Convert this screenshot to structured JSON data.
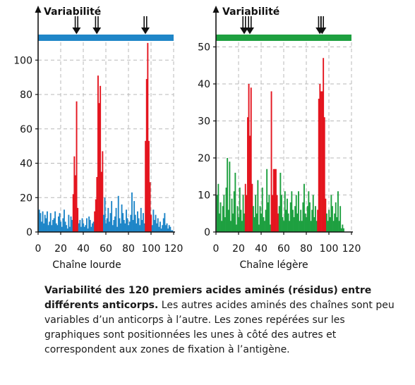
{
  "chart_data": [
    {
      "type": "bar",
      "title": "Variabilité",
      "xlabel": "Chaîne lourde",
      "ylabel": "",
      "xlim": [
        0,
        120
      ],
      "ylim": [
        0,
        112
      ],
      "xticks": [
        "0",
        "20",
        "40",
        "60",
        "80",
        "100",
        "120"
      ],
      "yticks": [
        "0",
        "20",
        "40",
        "60",
        "80",
        "100"
      ],
      "xtick_values": [
        0,
        20,
        40,
        60,
        80,
        100,
        120
      ],
      "ytick_values": [
        0,
        20,
        40,
        60,
        80,
        100
      ],
      "grid": true,
      "band_color": "#1f86c8",
      "base_color": "#1f86c8",
      "highlight_color": "#e4151f",
      "arrow_positions": [
        34,
        52,
        95
      ],
      "highlight_ranges": [
        [
          31,
          35
        ],
        [
          50,
          57
        ],
        [
          95,
          100
        ]
      ],
      "x": [
        1,
        2,
        3,
        4,
        5,
        6,
        7,
        8,
        9,
        10,
        11,
        12,
        13,
        14,
        15,
        16,
        17,
        18,
        19,
        20,
        21,
        22,
        23,
        24,
        25,
        26,
        27,
        28,
        29,
        30,
        31,
        32,
        33,
        34,
        35,
        36,
        37,
        38,
        39,
        40,
        41,
        42,
        43,
        44,
        45,
        46,
        47,
        48,
        49,
        50,
        51,
        52,
        53,
        54,
        55,
        56,
        57,
        58,
        59,
        60,
        61,
        62,
        63,
        64,
        65,
        66,
        67,
        68,
        69,
        70,
        71,
        72,
        73,
        74,
        75,
        76,
        77,
        78,
        79,
        80,
        81,
        82,
        83,
        84,
        85,
        86,
        87,
        88,
        89,
        90,
        91,
        92,
        93,
        94,
        95,
        96,
        97,
        98,
        99,
        100,
        101,
        102,
        103,
        104,
        105,
        106,
        107,
        108,
        109,
        110,
        111,
        112,
        113,
        114,
        115,
        116,
        117,
        118,
        119
      ],
      "values": [
        13,
        11,
        6,
        12,
        5,
        10,
        8,
        12,
        4,
        6,
        11,
        4,
        7,
        8,
        12,
        5,
        4,
        9,
        11,
        6,
        3,
        8,
        13,
        6,
        4,
        2,
        10,
        3,
        9,
        7,
        22,
        44,
        33,
        76,
        14,
        5,
        7,
        3,
        8,
        5,
        3,
        4,
        8,
        2,
        9,
        7,
        3,
        5,
        6,
        12,
        19,
        32,
        91,
        75,
        85,
        35,
        47,
        10,
        20,
        5,
        8,
        14,
        6,
        11,
        18,
        4,
        7,
        9,
        14,
        3,
        21,
        8,
        5,
        16,
        11,
        7,
        5,
        13,
        8,
        4,
        6,
        10,
        23,
        7,
        18,
        10,
        5,
        12,
        8,
        4,
        14,
        7,
        11,
        5,
        53,
        89,
        110,
        53,
        29,
        10,
        4,
        13,
        7,
        10,
        5,
        8,
        3,
        6,
        2,
        4,
        8,
        11,
        4,
        5,
        2,
        4,
        3,
        1,
        1
      ]
    },
    {
      "type": "bar",
      "title": "Variabilité",
      "xlabel": "Chaîne légère",
      "ylabel": "",
      "xlim": [
        0,
        120
      ],
      "ylim": [
        0,
        52
      ],
      "xticks": [
        "0",
        "20",
        "40",
        "60",
        "80",
        "100",
        "120"
      ],
      "yticks": [
        "0",
        "10",
        "20",
        "30",
        "40",
        "50"
      ],
      "xtick_values": [
        0,
        20,
        40,
        60,
        80,
        100,
        120
      ],
      "ytick_values": [
        0,
        10,
        20,
        30,
        40,
        50
      ],
      "grid": true,
      "band_color": "#1ea040",
      "base_color": "#1ea040",
      "highlight_color": "#e4151f",
      "arrow_positions": [
        25,
        30,
        92,
        94
      ],
      "highlight_ranges": [
        [
          26,
          32
        ],
        [
          49,
          55
        ],
        [
          90,
          97
        ]
      ],
      "x": [
        1,
        2,
        3,
        4,
        5,
        6,
        7,
        8,
        9,
        10,
        11,
        12,
        13,
        14,
        15,
        16,
        17,
        18,
        19,
        20,
        21,
        22,
        23,
        24,
        25,
        26,
        27,
        28,
        29,
        30,
        31,
        32,
        33,
        34,
        35,
        36,
        37,
        38,
        39,
        40,
        41,
        42,
        43,
        44,
        45,
        46,
        47,
        48,
        49,
        50,
        51,
        52,
        53,
        54,
        55,
        56,
        57,
        58,
        59,
        60,
        61,
        62,
        63,
        64,
        65,
        66,
        67,
        68,
        69,
        70,
        71,
        72,
        73,
        74,
        75,
        76,
        77,
        78,
        79,
        80,
        81,
        82,
        83,
        84,
        85,
        86,
        87,
        88,
        89,
        90,
        91,
        92,
        93,
        94,
        95,
        96,
        97,
        98,
        99,
        100,
        101,
        102,
        103,
        104,
        105,
        106,
        107,
        108,
        109,
        110,
        111,
        112,
        113,
        114,
        115,
        116,
        117,
        118,
        119
      ],
      "values": [
        10,
        13,
        5,
        8,
        3,
        7,
        10,
        4,
        12,
        20,
        6,
        19,
        3,
        9,
        5,
        11,
        16,
        2,
        7,
        4,
        12,
        6,
        3,
        10,
        5,
        13,
        10,
        31,
        40,
        26,
        39,
        13,
        7,
        4,
        10,
        5,
        14,
        2,
        7,
        5,
        12,
        4,
        3,
        6,
        17,
        8,
        10,
        2,
        38,
        10,
        17,
        17,
        17,
        10,
        5,
        7,
        16,
        10,
        4,
        3,
        11,
        6,
        9,
        5,
        3,
        8,
        11,
        6,
        4,
        7,
        10,
        5,
        11,
        3,
        6,
        3,
        8,
        13,
        5,
        4,
        7,
        11,
        8,
        3,
        6,
        10,
        4,
        7,
        3,
        6,
        36,
        40,
        38,
        38,
        47,
        31,
        9,
        5,
        3,
        6,
        4,
        10,
        7,
        3,
        5,
        8,
        4,
        11,
        3,
        7,
        1,
        2,
        1,
        0,
        0,
        0,
        0,
        0,
        0
      ]
    }
  ],
  "caption": {
    "bold": "Variabilité des 120 premiers acides aminés (résidus) entre différents anticorps.",
    "text": " Les autres acides aminés des chaînes sont peu variables d’un anticorps à l’autre. Les zones repérées sur les graphiques sont positionnées les unes à côté des autres et correspondent aux zones de fixation à l’antigène."
  }
}
